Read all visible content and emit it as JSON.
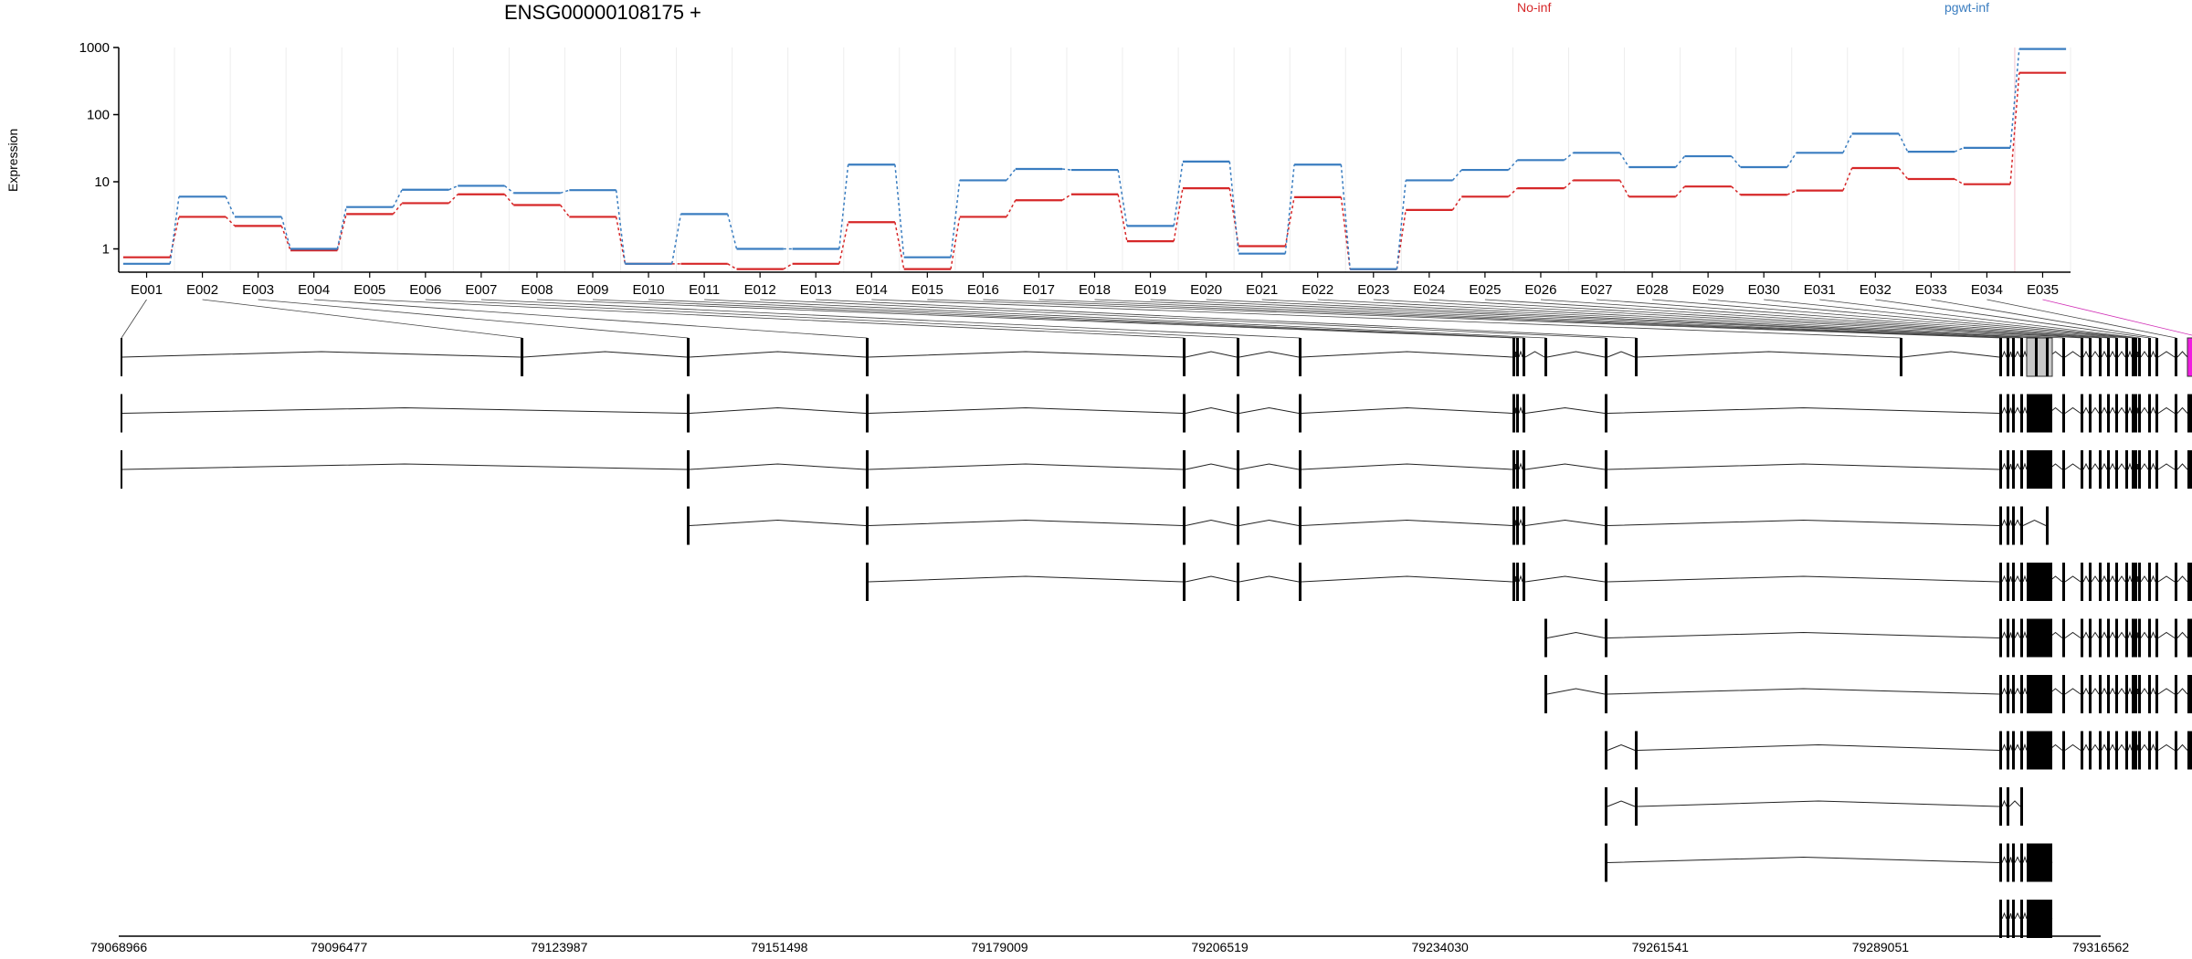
{
  "chart_data": {
    "type": "line",
    "title": "ENSG00000108175 +",
    "ylabel": "Expression",
    "yscale": "log",
    "ylim": [
      0.45,
      1000
    ],
    "yticks": [
      "1",
      "10",
      "100",
      "1000"
    ],
    "categories": [
      "E001",
      "E002",
      "E003",
      "E004",
      "E005",
      "E006",
      "E007",
      "E008",
      "E009",
      "E010",
      "E011",
      "E012",
      "E013",
      "E014",
      "E015",
      "E016",
      "E017",
      "E018",
      "E019",
      "E020",
      "E021",
      "E022",
      "E023",
      "E024",
      "E025",
      "E026",
      "E027",
      "E028",
      "E029",
      "E030",
      "E031",
      "E032",
      "E033",
      "E034",
      "E035"
    ],
    "series": [
      {
        "name": "No-inf",
        "color": "#d62728",
        "values": [
          0.75,
          3,
          2.2,
          0.95,
          3.3,
          4.8,
          6.5,
          4.5,
          3,
          0.6,
          0.6,
          0.5,
          0.6,
          2.5,
          0.5,
          3,
          5.3,
          6.5,
          1.3,
          8,
          1.1,
          5.9,
          0.5,
          3.8,
          6,
          8,
          10.5,
          6,
          8.5,
          6.4,
          7.4,
          16,
          11,
          9.2,
          420
        ]
      },
      {
        "name": "pgwt-inf",
        "color": "#3a7dc0",
        "values": [
          0.6,
          6,
          3,
          1,
          4.2,
          7.6,
          8.7,
          6.8,
          7.5,
          0.6,
          3.3,
          1,
          1,
          18,
          0.75,
          10.5,
          15.5,
          15,
          2.2,
          20,
          0.85,
          18,
          0.5,
          10.5,
          15,
          21,
          27,
          16.5,
          24,
          16.5,
          27,
          52,
          28,
          32,
          950
        ]
      }
    ],
    "genome_ticks": [
      "79068966",
      "79096477",
      "79123987",
      "79151498",
      "79179009",
      "79206519",
      "79234030",
      "79261541",
      "79289051",
      "79316562"
    ],
    "transcripts": [
      [
        1,
        2,
        3,
        4,
        5,
        6,
        7,
        8,
        9,
        10,
        11,
        12,
        13,
        14,
        15,
        16,
        17,
        18,
        19,
        20,
        21,
        22,
        23,
        24,
        25,
        26,
        27,
        28,
        29,
        30,
        31,
        32,
        33,
        34,
        35
      ],
      [
        1,
        3,
        4,
        5,
        6,
        7,
        8,
        9,
        10,
        12,
        15,
        16,
        17,
        18,
        19,
        20,
        21,
        22,
        23,
        24,
        25,
        26,
        27,
        28,
        29,
        30,
        31,
        32,
        33,
        34,
        35
      ],
      [
        1,
        3,
        4,
        5,
        6,
        7,
        8,
        9,
        10,
        12,
        15,
        16,
        17,
        18,
        19,
        20,
        21,
        22,
        23,
        24,
        25,
        26,
        27,
        28,
        29,
        30,
        31,
        32,
        33,
        34,
        35
      ],
      [
        3,
        4,
        5,
        6,
        7,
        8,
        9,
        10,
        12,
        15,
        16,
        17,
        18,
        21
      ],
      [
        4,
        5,
        6,
        7,
        8,
        9,
        10,
        12,
        15,
        16,
        17,
        18,
        19,
        20,
        21,
        22,
        23,
        24,
        25,
        26,
        27,
        28,
        29,
        30,
        31,
        32,
        33,
        34,
        35
      ],
      [
        11,
        12,
        15,
        16,
        17,
        18,
        19,
        20,
        21,
        22,
        23,
        24,
        25,
        26,
        27,
        28,
        29,
        30,
        31,
        32,
        33,
        34,
        35
      ],
      [
        11,
        12,
        15,
        16,
        17,
        18,
        19,
        20,
        21,
        22,
        23,
        24,
        25,
        26,
        27,
        28,
        29,
        30,
        31,
        32,
        33,
        34,
        35
      ],
      [
        13,
        12,
        15,
        16,
        17,
        18,
        19,
        20,
        21,
        22,
        23,
        24,
        25,
        26,
        27,
        28,
        29,
        30,
        31,
        32,
        33,
        34,
        35
      ],
      [
        13,
        12,
        15,
        16,
        18
      ],
      [
        12,
        15,
        16,
        17,
        18,
        19,
        21
      ],
      [
        15,
        16,
        17,
        18,
        19,
        20
      ]
    ]
  }
}
